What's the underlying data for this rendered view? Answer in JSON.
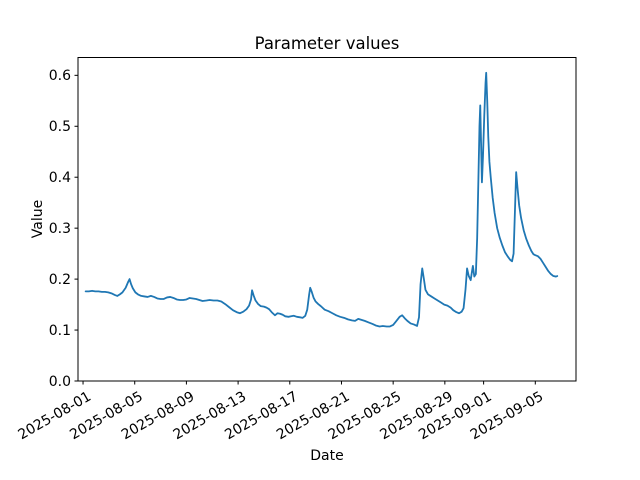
{
  "chart_data": {
    "type": "line",
    "title": "Parameter values",
    "xlabel": "Date",
    "ylabel": "Value",
    "grid": false,
    "legend": "none",
    "background_color": "#ffffff",
    "axes_box_color": "#000000",
    "line_color": "#1f77b4",
    "line_width": 1.8,
    "x_epoch_date": "2025-08-01",
    "xlim_days": [
      -0.39,
      38.15
    ],
    "ylim": [
      0,
      0.635
    ],
    "yticks": [
      {
        "label": "0.0",
        "value": 0.0
      },
      {
        "label": "0.1",
        "value": 0.1
      },
      {
        "label": "0.2",
        "value": 0.2
      },
      {
        "label": "0.3",
        "value": 0.3
      },
      {
        "label": "0.4",
        "value": 0.4
      },
      {
        "label": "0.5",
        "value": 0.5
      },
      {
        "label": "0.6",
        "value": 0.6
      }
    ],
    "xticks": [
      {
        "label": "2025-08-01",
        "day": 0
      },
      {
        "label": "2025-08-05",
        "day": 4
      },
      {
        "label": "2025-08-09",
        "day": 8
      },
      {
        "label": "2025-08-13",
        "day": 12
      },
      {
        "label": "2025-08-17",
        "day": 16
      },
      {
        "label": "2025-08-21",
        "day": 20
      },
      {
        "label": "2025-08-25",
        "day": 24
      },
      {
        "label": "2025-08-29",
        "day": 28
      },
      {
        "label": "2025-09-01",
        "day": 31
      },
      {
        "label": "2025-09-05",
        "day": 35
      }
    ],
    "xtick_rotation_deg": 30,
    "series": [
      {
        "name": "parameter-values",
        "points_day_value": [
          [
            0.2,
            0.176
          ],
          [
            0.45,
            0.176
          ],
          [
            0.7,
            0.177
          ],
          [
            0.95,
            0.176
          ],
          [
            1.2,
            0.176
          ],
          [
            1.45,
            0.175
          ],
          [
            1.7,
            0.175
          ],
          [
            1.95,
            0.174
          ],
          [
            2.2,
            0.172
          ],
          [
            2.45,
            0.169
          ],
          [
            2.65,
            0.167
          ],
          [
            2.85,
            0.17
          ],
          [
            3.05,
            0.174
          ],
          [
            3.3,
            0.183
          ],
          [
            3.5,
            0.195
          ],
          [
            3.6,
            0.2
          ],
          [
            3.72,
            0.19
          ],
          [
            3.85,
            0.182
          ],
          [
            4.05,
            0.174
          ],
          [
            4.25,
            0.17
          ],
          [
            4.5,
            0.167
          ],
          [
            4.75,
            0.166
          ],
          [
            5.0,
            0.165
          ],
          [
            5.25,
            0.167
          ],
          [
            5.5,
            0.165
          ],
          [
            5.75,
            0.162
          ],
          [
            6.0,
            0.161
          ],
          [
            6.25,
            0.161
          ],
          [
            6.5,
            0.164
          ],
          [
            6.75,
            0.165
          ],
          [
            7.0,
            0.163
          ],
          [
            7.25,
            0.16
          ],
          [
            7.5,
            0.159
          ],
          [
            7.75,
            0.159
          ],
          [
            8.0,
            0.16
          ],
          [
            8.25,
            0.163
          ],
          [
            8.5,
            0.162
          ],
          [
            8.75,
            0.161
          ],
          [
            9.0,
            0.159
          ],
          [
            9.25,
            0.157
          ],
          [
            9.55,
            0.158
          ],
          [
            9.8,
            0.159
          ],
          [
            10.1,
            0.158
          ],
          [
            10.4,
            0.158
          ],
          [
            10.7,
            0.156
          ],
          [
            11.0,
            0.151
          ],
          [
            11.3,
            0.145
          ],
          [
            11.6,
            0.139
          ],
          [
            11.9,
            0.135
          ],
          [
            12.15,
            0.133
          ],
          [
            12.4,
            0.136
          ],
          [
            12.65,
            0.141
          ],
          [
            12.85,
            0.148
          ],
          [
            13.0,
            0.16
          ],
          [
            13.08,
            0.178
          ],
          [
            13.2,
            0.168
          ],
          [
            13.35,
            0.158
          ],
          [
            13.55,
            0.151
          ],
          [
            13.75,
            0.147
          ],
          [
            14.0,
            0.146
          ],
          [
            14.2,
            0.144
          ],
          [
            14.4,
            0.141
          ],
          [
            14.6,
            0.135
          ],
          [
            14.85,
            0.129
          ],
          [
            15.05,
            0.133
          ],
          [
            15.25,
            0.132
          ],
          [
            15.45,
            0.13
          ],
          [
            15.65,
            0.127
          ],
          [
            15.9,
            0.126
          ],
          [
            16.1,
            0.127
          ],
          [
            16.3,
            0.128
          ],
          [
            16.55,
            0.126
          ],
          [
            16.8,
            0.125
          ],
          [
            17.0,
            0.124
          ],
          [
            17.2,
            0.128
          ],
          [
            17.35,
            0.14
          ],
          [
            17.5,
            0.17
          ],
          [
            17.58,
            0.183
          ],
          [
            17.7,
            0.175
          ],
          [
            17.85,
            0.163
          ],
          [
            18.0,
            0.156
          ],
          [
            18.2,
            0.151
          ],
          [
            18.4,
            0.147
          ],
          [
            18.7,
            0.14
          ],
          [
            19.0,
            0.137
          ],
          [
            19.3,
            0.133
          ],
          [
            19.6,
            0.129
          ],
          [
            19.9,
            0.126
          ],
          [
            20.2,
            0.124
          ],
          [
            20.5,
            0.121
          ],
          [
            20.8,
            0.119
          ],
          [
            21.05,
            0.118
          ],
          [
            21.3,
            0.122
          ],
          [
            21.55,
            0.12
          ],
          [
            21.8,
            0.118
          ],
          [
            22.1,
            0.115
          ],
          [
            22.4,
            0.112
          ],
          [
            22.65,
            0.109
          ],
          [
            22.95,
            0.107
          ],
          [
            23.2,
            0.108
          ],
          [
            23.5,
            0.107
          ],
          [
            23.75,
            0.107
          ],
          [
            24.0,
            0.11
          ],
          [
            24.25,
            0.118
          ],
          [
            24.5,
            0.126
          ],
          [
            24.7,
            0.129
          ],
          [
            24.9,
            0.123
          ],
          [
            25.1,
            0.118
          ],
          [
            25.35,
            0.113
          ],
          [
            25.6,
            0.111
          ],
          [
            25.85,
            0.108
          ],
          [
            26.0,
            0.125
          ],
          [
            26.12,
            0.19
          ],
          [
            26.25,
            0.221
          ],
          [
            26.38,
            0.2
          ],
          [
            26.5,
            0.179
          ],
          [
            26.7,
            0.17
          ],
          [
            26.95,
            0.166
          ],
          [
            27.2,
            0.162
          ],
          [
            27.45,
            0.158
          ],
          [
            27.7,
            0.154
          ],
          [
            27.95,
            0.15
          ],
          [
            28.2,
            0.148
          ],
          [
            28.45,
            0.144
          ],
          [
            28.65,
            0.139
          ],
          [
            28.9,
            0.135
          ],
          [
            29.1,
            0.133
          ],
          [
            29.3,
            0.136
          ],
          [
            29.45,
            0.143
          ],
          [
            29.6,
            0.18
          ],
          [
            29.72,
            0.221
          ],
          [
            29.85,
            0.206
          ],
          [
            30.0,
            0.198
          ],
          [
            30.1,
            0.215
          ],
          [
            30.17,
            0.226
          ],
          [
            30.28,
            0.205
          ],
          [
            30.4,
            0.21
          ],
          [
            30.5,
            0.28
          ],
          [
            30.6,
            0.4
          ],
          [
            30.68,
            0.5
          ],
          [
            30.74,
            0.541
          ],
          [
            30.8,
            0.47
          ],
          [
            30.87,
            0.39
          ],
          [
            30.95,
            0.44
          ],
          [
            31.05,
            0.52
          ],
          [
            31.15,
            0.585
          ],
          [
            31.2,
            0.605
          ],
          [
            31.28,
            0.55
          ],
          [
            31.36,
            0.48
          ],
          [
            31.45,
            0.43
          ],
          [
            31.55,
            0.4
          ],
          [
            31.7,
            0.36
          ],
          [
            31.85,
            0.33
          ],
          [
            32.05,
            0.3
          ],
          [
            32.25,
            0.281
          ],
          [
            32.45,
            0.266
          ],
          [
            32.65,
            0.253
          ],
          [
            32.85,
            0.245
          ],
          [
            33.05,
            0.238
          ],
          [
            33.2,
            0.235
          ],
          [
            33.32,
            0.25
          ],
          [
            33.42,
            0.33
          ],
          [
            33.52,
            0.41
          ],
          [
            33.62,
            0.38
          ],
          [
            33.75,
            0.345
          ],
          [
            33.9,
            0.32
          ],
          [
            34.1,
            0.296
          ],
          [
            34.3,
            0.279
          ],
          [
            34.5,
            0.266
          ],
          [
            34.7,
            0.255
          ],
          [
            34.85,
            0.249
          ],
          [
            35.0,
            0.247
          ],
          [
            35.2,
            0.245
          ],
          [
            35.4,
            0.24
          ],
          [
            35.6,
            0.232
          ],
          [
            35.8,
            0.224
          ],
          [
            36.0,
            0.216
          ],
          [
            36.2,
            0.21
          ],
          [
            36.4,
            0.206
          ],
          [
            36.6,
            0.205
          ],
          [
            36.7,
            0.206
          ]
        ]
      }
    ]
  }
}
